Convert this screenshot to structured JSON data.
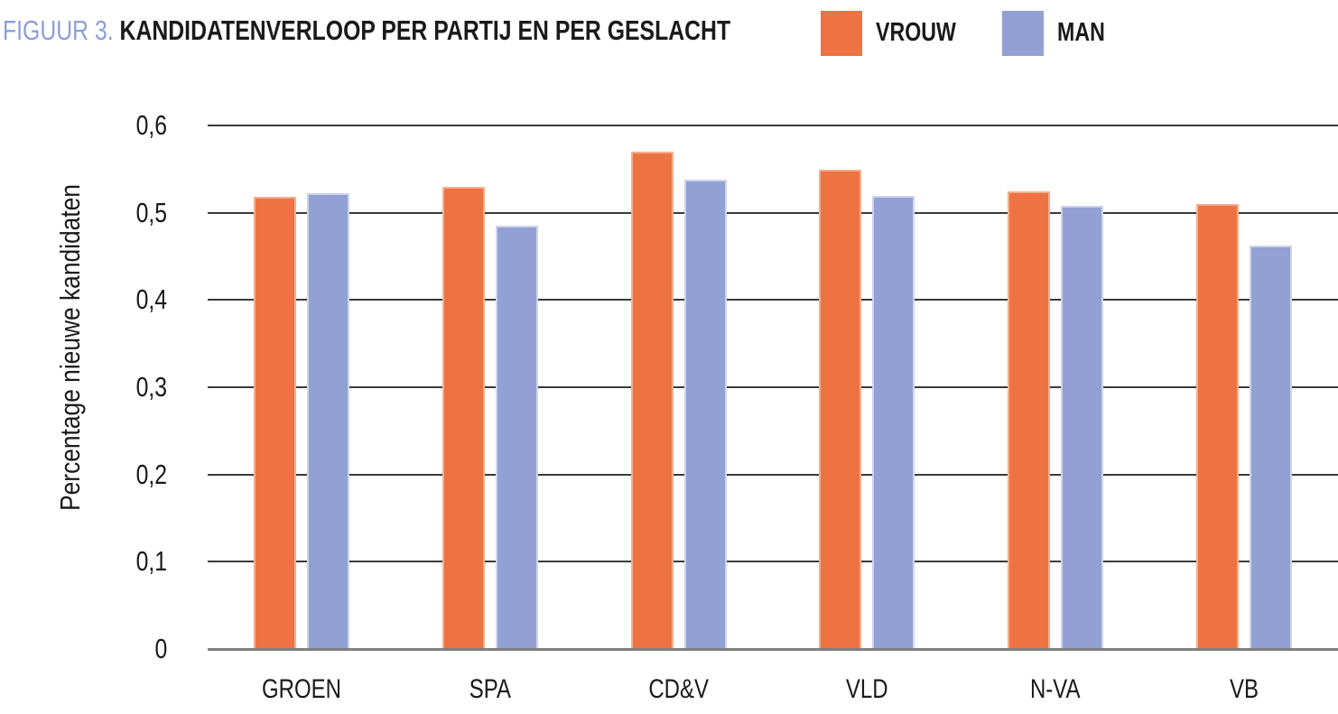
{
  "title": {
    "prefix": "FIGUUR 3.",
    "text": "KANDIDATENVERLOOP PER PARTIJ EN PER GESLACHT",
    "prefix_color": "#8c9dd8",
    "text_color": "#1a1a1a"
  },
  "chart_data": {
    "type": "bar",
    "categories": [
      "GROEN",
      "SPA",
      "CD&V",
      "VLD",
      "N-VA",
      "VB"
    ],
    "series": [
      {
        "name": "VROUW",
        "color": "#ed7342",
        "border_color": "#f5ae90",
        "values": [
          0.518,
          0.53,
          0.57,
          0.549,
          0.525,
          0.51
        ]
      },
      {
        "name": "MAN",
        "color": "#93a0d3",
        "border_color": "#cdd4ec",
        "values": [
          0.522,
          0.485,
          0.538,
          0.519,
          0.508,
          0.462
        ]
      }
    ],
    "ylabel": "Percentage nieuwe kandidaten",
    "xlabel": "",
    "ylim": [
      0,
      0.6
    ],
    "ytick_values": [
      0,
      0.1,
      0.2,
      0.3,
      0.4,
      0.5,
      0.6
    ],
    "ytick_labels": [
      "0",
      "0,1",
      "0,2",
      "0,3",
      "0,4",
      "0,5",
      "0,6"
    ],
    "grid": true,
    "gridline_color": "#3a3a3a",
    "axis_color": "#7f7f7f",
    "legend_position": "top-right"
  }
}
